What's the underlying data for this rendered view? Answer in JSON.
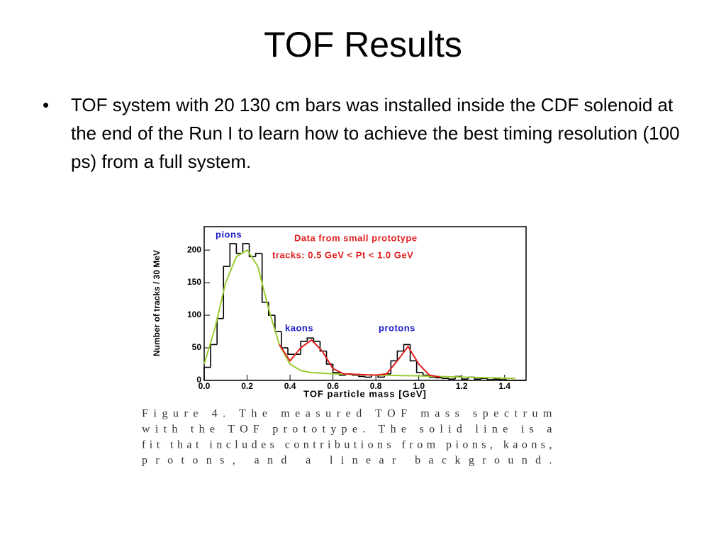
{
  "slide": {
    "title": "TOF Results",
    "bullets": [
      "TOF system with 20 130 cm bars was installed inside the CDF solenoid at the end of the Run I to learn how to achieve the best timing resolution (100 ps) from a full system."
    ]
  },
  "chart_data": {
    "type": "histogram",
    "xlabel": "TOF particle mass [GeV]",
    "ylabel": "Number of tracks / 30 MeV",
    "annotations": [
      "pions",
      "Data from small prototype",
      "tracks: 0.5 GeV < Pt < 1.0 GeV",
      "kaons",
      "protons"
    ],
    "xlim": [
      0,
      1.5
    ],
    "ylim": [
      0,
      236
    ],
    "xticks": [
      {
        "value": 0,
        "label": "0.0"
      },
      0.2,
      0.4,
      0.6,
      0.8,
      {
        "value": 1,
        "label": "1.0"
      },
      1.2,
      1.4
    ],
    "yticks": [
      0,
      50,
      100,
      150,
      200
    ],
    "color": "#000000",
    "bins": [
      0,
      0.03,
      0.06,
      0.09,
      0.12,
      0.15,
      0.18,
      0.21,
      0.24,
      0.27,
      0.3,
      0.33,
      0.36,
      0.39,
      0.42,
      0.45,
      0.48,
      0.51,
      0.54,
      0.57,
      0.6,
      0.63,
      0.66,
      0.69,
      0.72,
      0.75,
      0.78,
      0.81,
      0.84,
      0.87,
      0.9,
      0.93,
      0.96,
      0.99,
      1.02,
      1.05,
      1.08,
      1.11,
      1.14,
      1.17,
      1.2,
      1.23,
      1.26,
      1.29,
      1.32,
      1.35,
      1.38,
      1.41,
      1.44,
      1.47,
      1.5
    ],
    "counts": [
      20,
      55,
      95,
      175,
      210,
      195,
      210,
      190,
      195,
      120,
      100,
      75,
      50,
      40,
      40,
      60,
      65,
      60,
      45,
      25,
      12,
      8,
      10,
      8,
      6,
      5,
      8,
      5,
      10,
      30,
      45,
      55,
      30,
      12,
      8,
      5,
      4,
      3,
      2,
      6,
      2,
      5,
      2,
      3,
      1,
      2,
      1,
      0,
      0,
      0
    ],
    "lines": [
      {
        "color": "#9acd32",
        "x": [
          0,
          0.05,
          0.1,
          0.15,
          0.2,
          0.25,
          0.3,
          0.35,
          0.4,
          0.45,
          0.5,
          0.6,
          0.7,
          0.8,
          1.0,
          1.2,
          1.45
        ],
        "values": [
          25,
          80,
          150,
          190,
          200,
          175,
          110,
          55,
          25,
          15,
          12,
          10,
          9,
          8,
          7,
          5,
          3
        ]
      },
      {
        "color": "#e02020",
        "x": [
          0.35,
          0.4,
          0.45,
          0.5,
          0.55,
          0.6,
          0.65,
          0.8,
          0.85,
          0.9,
          0.95,
          1.0,
          1.05,
          1.1
        ],
        "values": [
          55,
          30,
          50,
          62,
          45,
          18,
          10,
          8,
          10,
          30,
          52,
          25,
          8,
          5
        ]
      }
    ]
  },
  "caption": [
    "Figure 4.   The measured TOF mass spectrum",
    "with the TOF prototype.  The solid line is a",
    "fit that includes contributions from pions, kaons,",
    "protons, and a linear background."
  ]
}
